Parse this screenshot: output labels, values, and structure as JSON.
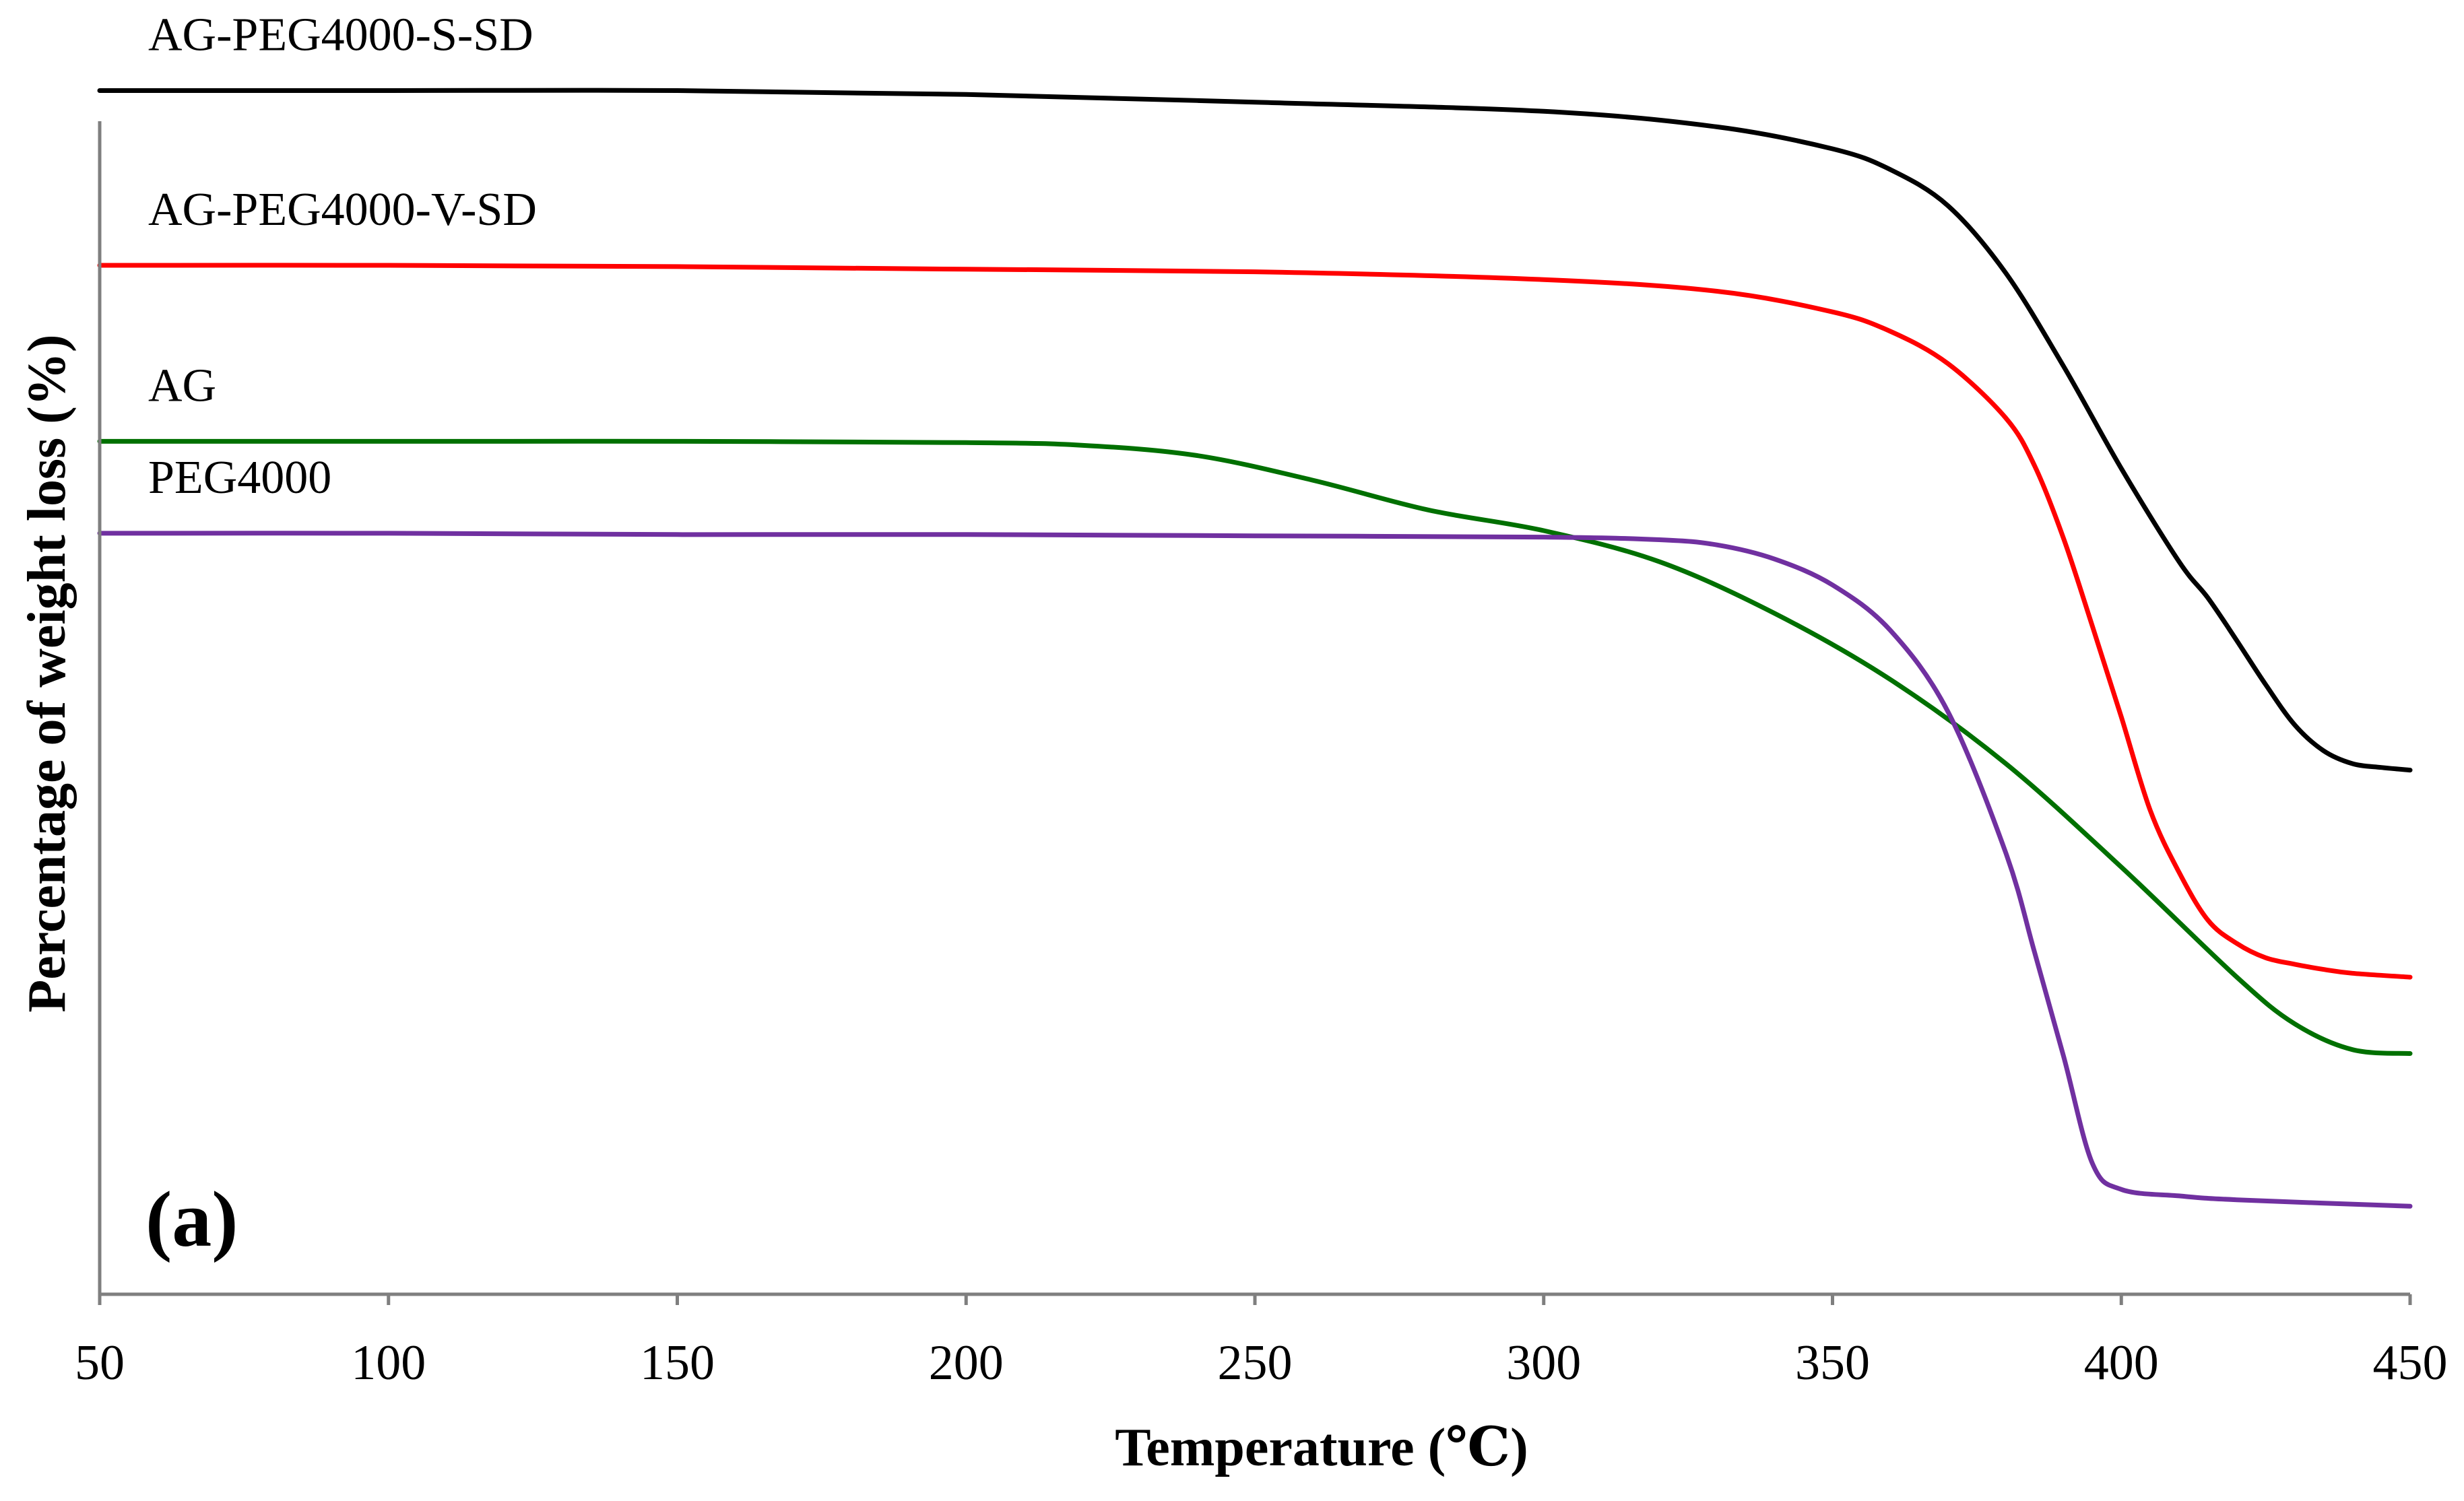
{
  "chart_data": {
    "type": "line",
    "title": "",
    "panel_label": "(a)",
    "xlabel": "Temperature (℃)",
    "ylabel": "Percentage of weight loss (%)",
    "xlim": [
      50,
      450
    ],
    "ylim": [
      0,
      100
    ],
    "x_ticks": [
      50,
      100,
      150,
      200,
      250,
      300,
      350,
      400,
      450
    ],
    "x_tick_labels": [
      "50",
      "100",
      "150",
      "200",
      "250",
      "300",
      "350",
      "400",
      "450"
    ],
    "y_ticks_shown": false,
    "grid": false,
    "legend": "inline labels above each curve",
    "series": [
      {
        "name": "AG-PEG4000-S-SD",
        "color": "#000000",
        "x": [
          50,
          100,
          150,
          200,
          250,
          300,
          330,
          350,
          360,
          370,
          380,
          390,
          400,
          410,
          415,
          420,
          425,
          430,
          435,
          440,
          445,
          450
        ],
        "y": [
          93.0,
          93.0,
          93.0,
          92.7,
          92.1,
          91.4,
          90.2,
          88.5,
          86.9,
          84.1,
          78.9,
          71.7,
          63.8,
          56.6,
          53.8,
          50.5,
          47.1,
          44.0,
          42.0,
          41.0,
          40.7,
          40.5
        ]
      },
      {
        "name": "AG-PEG4000-V-SD",
        "color": "#ff0000",
        "x": [
          50,
          100,
          150,
          200,
          250,
          300,
          330,
          350,
          360,
          370,
          380,
          385,
          390,
          395,
          400,
          405,
          410,
          415,
          420,
          425,
          430,
          435,
          440,
          450
        ],
        "y": [
          79.5,
          79.5,
          79.4,
          79.2,
          79.0,
          78.4,
          77.5,
          75.9,
          74.4,
          71.9,
          67.7,
          64.0,
          58.4,
          51.6,
          44.6,
          37.4,
          32.6,
          28.9,
          27.1,
          26.0,
          25.5,
          25.1,
          24.8,
          24.5
        ]
      },
      {
        "name": "AG",
        "color": "#007000",
        "x": [
          50,
          100,
          150,
          200,
          220,
          240,
          260,
          280,
          300,
          320,
          340,
          360,
          380,
          400,
          420,
          430,
          440,
          450
        ],
        "y": [
          65.9,
          65.9,
          65.9,
          65.8,
          65.6,
          64.8,
          62.9,
          60.6,
          59.0,
          56.6,
          52.6,
          47.5,
          41.0,
          33.0,
          24.5,
          20.9,
          18.9,
          18.6
        ]
      },
      {
        "name": "PEG4000",
        "color": "#7030a0",
        "x": [
          50,
          100,
          150,
          200,
          250,
          300,
          320,
          330,
          340,
          350,
          360,
          370,
          380,
          385,
          390,
          395,
          400,
          410,
          420,
          450
        ],
        "y": [
          58.8,
          58.8,
          58.7,
          58.7,
          58.6,
          58.5,
          58.3,
          57.9,
          56.8,
          54.8,
          51.3,
          45.0,
          34.1,
          26.4,
          18.4,
          10.1,
          8.1,
          7.6,
          7.3,
          6.8
        ]
      }
    ]
  }
}
